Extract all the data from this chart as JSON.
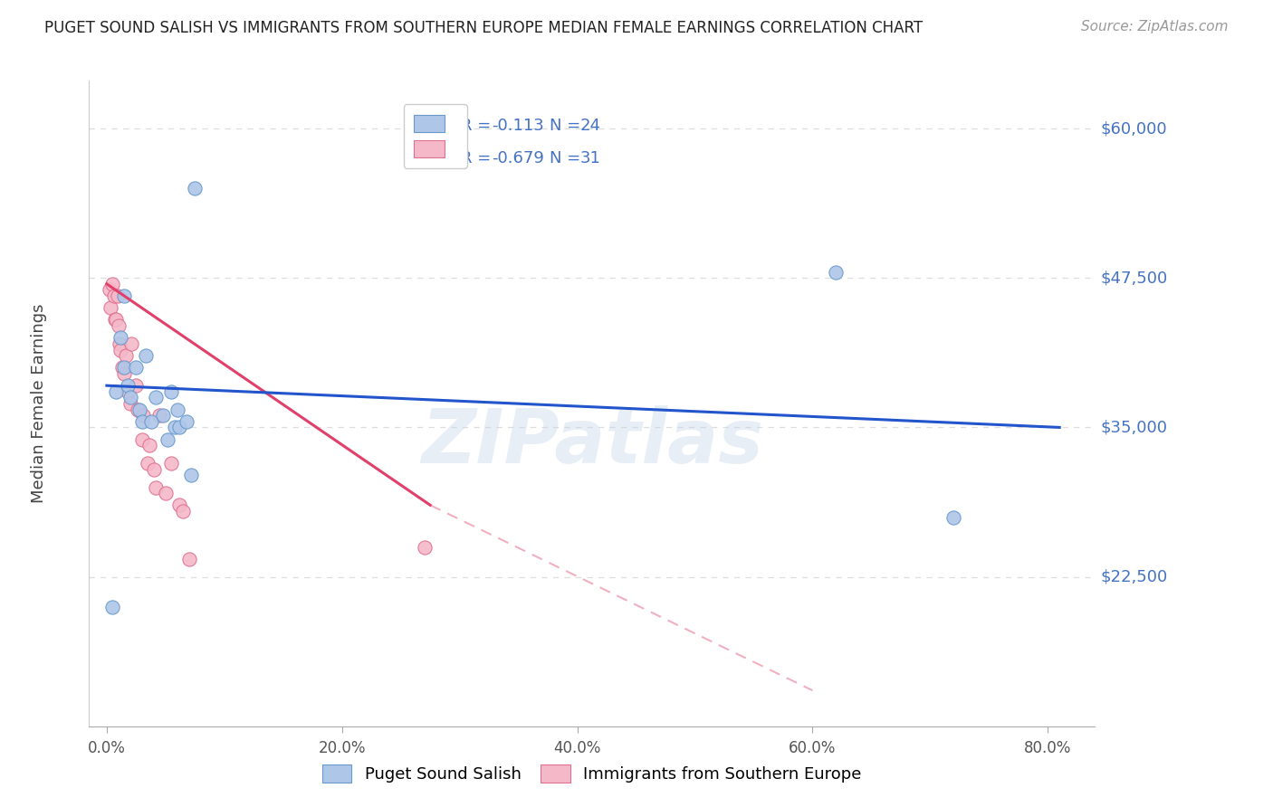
{
  "title": "PUGET SOUND SALISH VS IMMIGRANTS FROM SOUTHERN EUROPE MEDIAN FEMALE EARNINGS CORRELATION CHART",
  "source": "Source: ZipAtlas.com",
  "ylabel": "Median Female Earnings",
  "watermark": "ZIPatlas",
  "y_tick_labels": [
    "$22,500",
    "$35,000",
    "$47,500",
    "$60,000"
  ],
  "y_tick_values": [
    22500,
    35000,
    47500,
    60000
  ],
  "x_tick_labels": [
    "0.0%",
    "20.0%",
    "40.0%",
    "60.0%",
    "80.0%"
  ],
  "x_tick_values": [
    0.0,
    0.2,
    0.4,
    0.6,
    0.8
  ],
  "xlim": [
    -0.015,
    0.84
  ],
  "ylim": [
    10000,
    64000
  ],
  "series1_name": "Puget Sound Salish",
  "series1_R": "-0.113",
  "series1_N": "24",
  "series1_color": "#aec6e8",
  "series1_edge_color": "#6699cc",
  "series2_name": "Immigrants from Southern Europe",
  "series2_R": "-0.679",
  "series2_N": "31",
  "series2_color": "#f4b8c8",
  "series2_edge_color": "#e07090",
  "line1_color": "#2255cc",
  "line2_color": "#e0406a",
  "line2_dash_color": "#f0b0c0",
  "legend_text_color": "#4472c4",
  "background_color": "#ffffff",
  "grid_color": "#dddddd",
  "title_color": "#222222",
  "source_color": "#999999",
  "ytick_color": "#4472c4",
  "xtick_color": "#555555",
  "series1_x": [
    0.005,
    0.008,
    0.012,
    0.015,
    0.015,
    0.018,
    0.02,
    0.025,
    0.028,
    0.03,
    0.033,
    0.038,
    0.042,
    0.048,
    0.052,
    0.055,
    0.058,
    0.06,
    0.062,
    0.068,
    0.072,
    0.075,
    0.62,
    0.72
  ],
  "series1_y": [
    20000,
    38000,
    42500,
    40000,
    46000,
    38500,
    37500,
    40000,
    36500,
    35500,
    41000,
    35500,
    37500,
    36000,
    34000,
    38000,
    35000,
    36500,
    35000,
    35500,
    31000,
    55000,
    48000,
    27500
  ],
  "series2_x": [
    0.002,
    0.003,
    0.005,
    0.006,
    0.007,
    0.008,
    0.009,
    0.01,
    0.011,
    0.012,
    0.013,
    0.015,
    0.016,
    0.018,
    0.02,
    0.021,
    0.025,
    0.026,
    0.03,
    0.031,
    0.035,
    0.036,
    0.04,
    0.042,
    0.045,
    0.05,
    0.055,
    0.062,
    0.065,
    0.07,
    0.27
  ],
  "series2_y": [
    46500,
    45000,
    47000,
    46000,
    44000,
    44000,
    46000,
    43500,
    42000,
    41500,
    40000,
    39500,
    41000,
    38000,
    37000,
    42000,
    38500,
    36500,
    34000,
    36000,
    32000,
    33500,
    31500,
    30000,
    36000,
    29500,
    32000,
    28500,
    28000,
    24000,
    25000
  ],
  "line1_x0": 0.0,
  "line1_x1": 0.81,
  "line1_y0": 38500,
  "line1_y1": 35000,
  "line2_x0": 0.0,
  "line2_x1": 0.275,
  "line2_y0": 47000,
  "line2_y1": 28500,
  "line2_dash_x0": 0.275,
  "line2_dash_x1": 0.6,
  "line2_dash_y0": 28500,
  "line2_dash_y1": 13000,
  "marker_size": 120
}
